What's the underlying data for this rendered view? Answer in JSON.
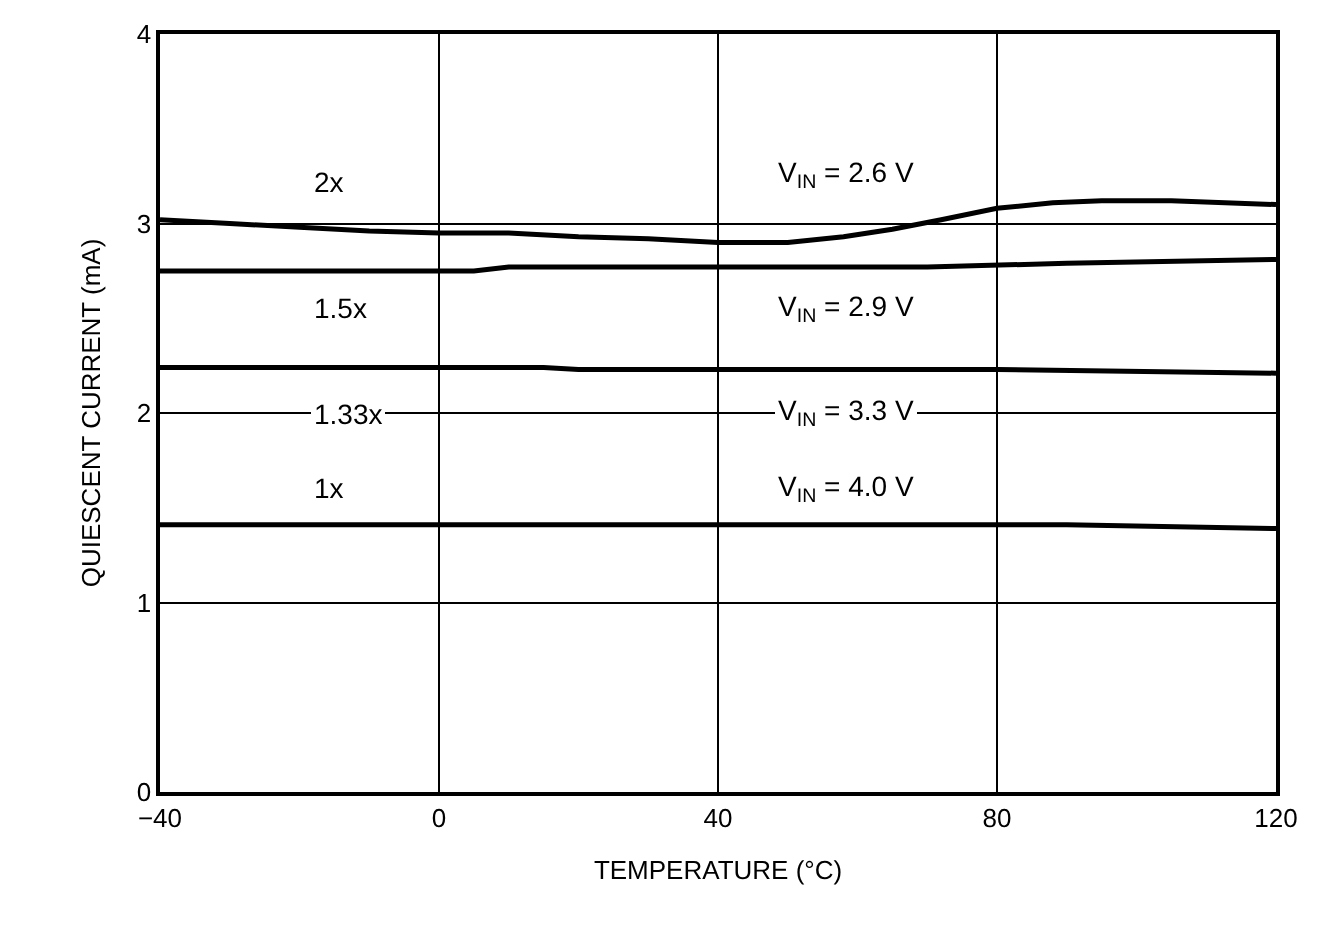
{
  "chart_data": {
    "type": "line",
    "xlabel": "TEMPERATURE (°C)",
    "ylabel": "QUIESCENT CURRENT (mA)",
    "xlim": [
      -40,
      120
    ],
    "xticks": [
      -40,
      0,
      40,
      80,
      120
    ],
    "ylim": [
      0,
      4
    ],
    "yticks": [
      0,
      1,
      2,
      3,
      4
    ],
    "grid": true,
    "legend": false,
    "marker": "none",
    "line_style": "solid",
    "series": [
      {
        "name": "2x",
        "color": "#000000",
        "x": [
          -40,
          -30,
          -20,
          -10,
          0,
          10,
          20,
          30,
          40,
          50,
          58,
          65,
          72,
          80,
          88,
          95,
          105,
          120
        ],
        "values": [
          3.02,
          3.0,
          2.98,
          2.96,
          2.95,
          2.95,
          2.93,
          2.92,
          2.9,
          2.9,
          2.93,
          2.97,
          3.02,
          3.08,
          3.11,
          3.12,
          3.12,
          3.1
        ]
      },
      {
        "name": "1.5x",
        "color": "#000000",
        "x": [
          -40,
          0,
          5,
          10,
          40,
          70,
          90,
          120
        ],
        "values": [
          2.75,
          2.75,
          2.75,
          2.77,
          2.77,
          2.77,
          2.79,
          2.81
        ]
      },
      {
        "name": "1.33x",
        "color": "#000000",
        "x": [
          -40,
          15,
          20,
          80,
          120
        ],
        "values": [
          2.24,
          2.24,
          2.23,
          2.23,
          2.21
        ]
      },
      {
        "name": "1x",
        "color": "#000000",
        "x": [
          -40,
          0,
          40,
          90,
          120
        ],
        "values": [
          1.41,
          1.41,
          1.41,
          1.41,
          1.39
        ]
      }
    ],
    "annotations": [
      "V$_{IN}$ = 2.6 V",
      "V$_{IN}$ = 2.9 V",
      "V$_{IN}$ = 3.3 V",
      "V$_{IN}$ = 4.0 V"
    ]
  }
}
